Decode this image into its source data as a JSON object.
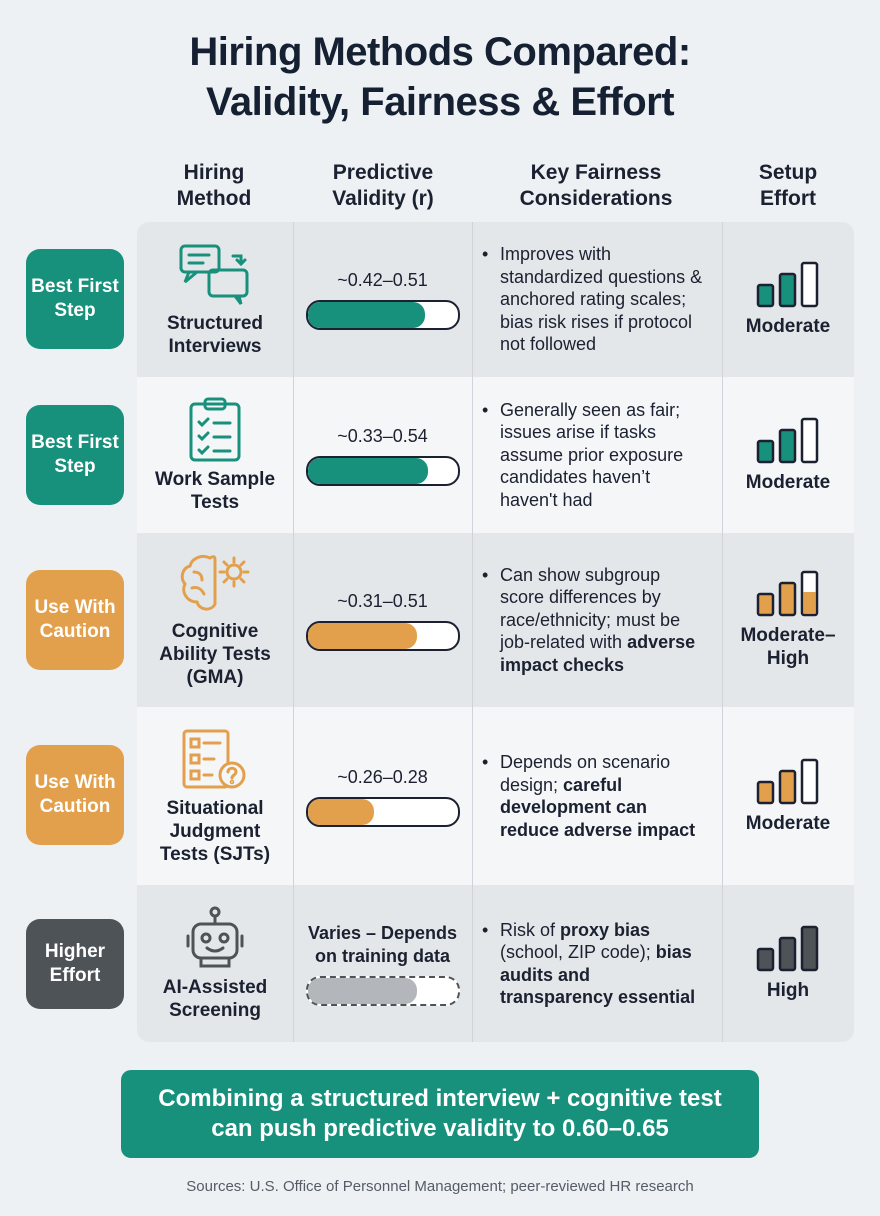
{
  "title": [
    "Hiring Methods Compared:",
    "Validity, Fairness & Effort"
  ],
  "headers": [
    "Hiring Method",
    "Predictive Validity (r)",
    "Key Fairness Considerations",
    "Setup Effort"
  ],
  "rows": [
    {
      "badge": "Best First Step",
      "method": "Structured Interviews",
      "validity": "~0.42–0.51",
      "fairness": [
        "Improves with standardized questions & anchored rating scales; bias risk rises if protocol not followed"
      ],
      "effort": "Moderate"
    },
    {
      "badge": "Best First Step",
      "method": "Work Sample Tests",
      "validity": "~0.33–0.54",
      "fairness": [
        "Generally seen as fair; issues arise if tasks assume prior exposure candidates haven’t haven't had"
      ],
      "effort": "Moderate"
    },
    {
      "badge": "Use With Caution",
      "method": "Cognitive Ability Tests (GMA)",
      "validity": "~0.31–0.51",
      "fairness": [
        "Can show subgroup score differences by race/ethnicity; must be job-related with ",
        "adverse impact checks"
      ],
      "effort": "Moderate–High"
    },
    {
      "badge": "Use With Caution",
      "method": "Situational Judgment Tests (SJTs)",
      "validity": "~0.26–0.28",
      "fairness": [
        "Depends on scenario design; ",
        "careful development can reduce adverse impact"
      ],
      "effort": "Moderate"
    },
    {
      "badge": "Higher Effort",
      "method": "AI-Assisted Screening",
      "validity": "Varies – Depends on training data",
      "fairness": [
        "Risk of ",
        "proxy bias",
        " (school, ZIP code); ",
        "bias audits and transparency essential"
      ],
      "effort": "High"
    }
  ],
  "footer": "Combining a structured interview + cognitive test can push predictive validity to 0.60–0.65",
  "sources": "Sources: U.S. Office of Personnel Management; peer-reviewed HR research"
}
